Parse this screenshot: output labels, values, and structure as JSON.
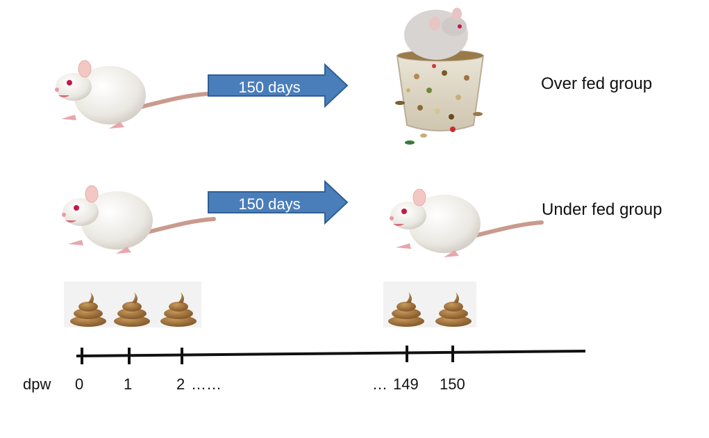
{
  "groups": {
    "over_fed_label": "Over fed group",
    "under_fed_label": "Under fed group"
  },
  "arrows": {
    "top_label": "150 days",
    "bottom_label": "150 days",
    "color": "#4a7ebb",
    "border": "#2f5f93"
  },
  "timeline": {
    "unit_label": "dpw",
    "ticks": [
      "0",
      "1",
      "2",
      "149",
      "150"
    ],
    "ellipsis_after_2": "……",
    "ellipsis_before_149": "…"
  },
  "colors": {
    "rat_fur": "#f4f2ee",
    "rat_tail": "#c99a8e",
    "poop": "#9a6a35",
    "bowl_mix": "#b48a52"
  },
  "icons": [
    "rat-icon",
    "seed-bowl-icon",
    "poop-icon"
  ]
}
